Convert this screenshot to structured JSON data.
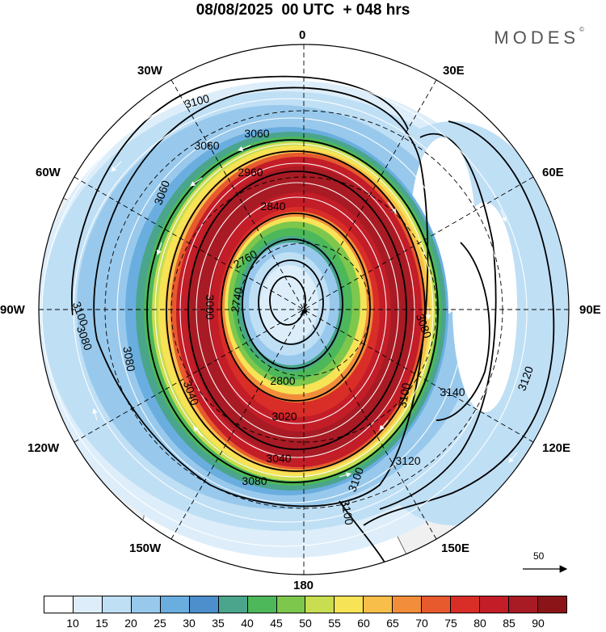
{
  "header": {
    "title": "08/08/2025  00 UTC  + 048 hrs",
    "brand": "MODES",
    "brand_mark": "©"
  },
  "longitude_labels": {
    "n0": "0",
    "n30e": "30E",
    "n60e": "60E",
    "n90e": "90E",
    "n120e": "120E",
    "n150e": "150E",
    "n180": "180",
    "n150w": "150W",
    "n120w": "120W",
    "n90w": "90W",
    "n60w": "60W",
    "n30w": "30W"
  },
  "contour_labels": [
    "3100",
    "3060",
    "3060",
    "2960",
    "3060",
    "2840",
    "2760",
    "2740",
    "2800",
    "3080",
    "3080",
    "3100",
    "3020",
    "3040",
    "3040",
    "3080",
    "3100",
    "3120",
    "3140",
    "3120",
    "3100",
    "3100",
    "3080",
    "3000"
  ],
  "reference_vector": {
    "label": "50"
  },
  "colorbar": {
    "ticks": [
      "10",
      "15",
      "20",
      "25",
      "30",
      "35",
      "40",
      "45",
      "50",
      "55",
      "60",
      "65",
      "70",
      "75",
      "80",
      "85",
      "90"
    ],
    "colors": [
      "#ffffff",
      "#ddeefa",
      "#bfdff5",
      "#98c9ec",
      "#6aaee0",
      "#4c8fcc",
      "#4aa58c",
      "#4db85a",
      "#7dc74d",
      "#c8dd50",
      "#f7e356",
      "#f8be4a",
      "#f28e3b",
      "#e65a2e",
      "#d92d28",
      "#c31d28",
      "#a81b24",
      "#8b1418"
    ]
  },
  "map_data": {
    "projection": "south-polar-stereographic",
    "variable": "wind speed (shaded) and geopotential height (contours)",
    "jet_core_max": 90
  }
}
